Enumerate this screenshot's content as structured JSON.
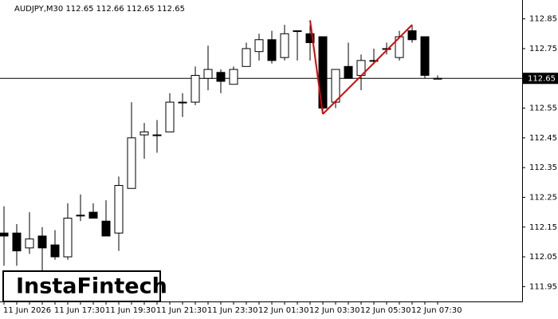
{
  "chart_data": {
    "type": "candlestick",
    "header": "AUDJPY,M30  112.65 112.66 112.65 112.65",
    "brand": "InstaFintech",
    "x": [
      "11 Jun 2026",
      null,
      null,
      null,
      "11 Jun 17:30",
      null,
      null,
      null,
      "11 Jun 19:30",
      null,
      null,
      null,
      "11 Jun 21:30",
      null,
      null,
      null,
      "11 Jun 23:30",
      null,
      null,
      null,
      "12 Jun 01:30",
      null,
      null,
      null,
      "12 Jun 03:30",
      null,
      null,
      null,
      "12 Jun 05:30",
      null,
      null,
      null,
      "12 Jun 07:30",
      null,
      null
    ],
    "open": [
      112.13,
      112.13,
      112.08,
      112.12,
      112.09,
      112.05,
      112.19,
      112.2,
      112.17,
      112.13,
      112.28,
      112.46,
      112.46,
      112.47,
      112.57,
      112.57,
      112.65,
      112.67,
      112.63,
      112.69,
      112.74,
      112.78,
      112.72,
      112.81,
      112.8,
      112.79,
      112.57,
      112.69,
      112.66,
      112.71,
      112.75,
      112.72,
      112.81,
      112.79,
      112.65
    ],
    "high": [
      112.22,
      112.16,
      112.2,
      112.15,
      112.14,
      112.23,
      112.26,
      112.23,
      112.24,
      112.32,
      112.57,
      112.5,
      112.51,
      112.6,
      112.6,
      112.69,
      112.76,
      112.68,
      112.69,
      112.77,
      112.8,
      112.81,
      112.83,
      112.81,
      112.83,
      112.79,
      112.68,
      112.77,
      112.73,
      112.75,
      112.77,
      112.81,
      112.83,
      112.79,
      112.66
    ],
    "low": [
      112.02,
      112.02,
      112.06,
      112.0,
      112.04,
      112.04,
      112.17,
      112.18,
      112.12,
      112.07,
      112.28,
      112.38,
      112.4,
      112.47,
      112.52,
      112.56,
      112.61,
      112.6,
      112.63,
      112.69,
      112.71,
      112.7,
      112.71,
      112.71,
      112.71,
      112.54,
      112.55,
      112.65,
      112.61,
      112.7,
      112.73,
      112.71,
      112.77,
      112.65,
      112.65
    ],
    "close": [
      112.12,
      112.07,
      112.11,
      112.08,
      112.05,
      112.18,
      112.19,
      112.18,
      112.12,
      112.29,
      112.45,
      112.47,
      112.46,
      112.57,
      112.57,
      112.66,
      112.68,
      112.64,
      112.68,
      112.75,
      112.78,
      112.71,
      112.8,
      112.81,
      112.77,
      112.55,
      112.68,
      112.65,
      112.71,
      112.71,
      112.75,
      112.79,
      112.78,
      112.66,
      112.65
    ],
    "current_price": 112.65,
    "pattern_values": [
      112.845,
      112.53,
      112.83
    ],
    "pattern_color": "#e00000",
    "ylim": [
      111.9,
      112.9
    ],
    "yticks": [
      111.95,
      112.05,
      112.15,
      112.25,
      112.35,
      112.45,
      112.55,
      112.65,
      112.75,
      112.85
    ]
  }
}
